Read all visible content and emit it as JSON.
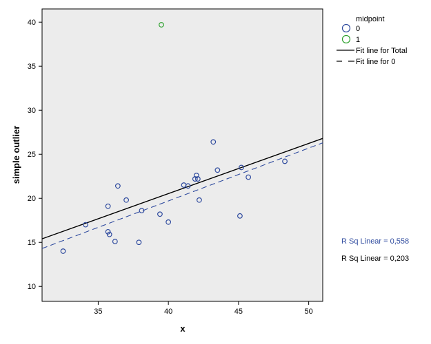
{
  "chart_data": {
    "type": "scatter",
    "xlabel": "x",
    "ylabel": "simple outlier",
    "xlim": [
      31,
      51
    ],
    "ylim": [
      8.3,
      41.5
    ],
    "xticks": [
      35,
      40,
      45,
      50
    ],
    "yticks": [
      10,
      15,
      20,
      25,
      30,
      35,
      40
    ],
    "grid": false,
    "legend_position": "top-right",
    "legend": {
      "title": "midpoint",
      "entries": [
        {
          "label": "0",
          "marker": "circle",
          "color": "#2e4a9e"
        },
        {
          "label": "1",
          "marker": "circle",
          "color": "#2ca02c"
        },
        {
          "label": "Fit line for Total",
          "line": "solid",
          "color": "#000000"
        },
        {
          "label": "Fit line for 0",
          "line": "dashed",
          "color": "#000000"
        }
      ]
    },
    "series": [
      {
        "name": "0",
        "color": "#2e4a9e",
        "x": [
          32.5,
          34.1,
          35.7,
          35.7,
          35.8,
          36.2,
          36.4,
          37.0,
          37.9,
          38.1,
          39.4,
          40.0,
          41.1,
          41.4,
          41.9,
          42.0,
          42.1,
          42.2,
          43.2,
          43.5,
          45.1,
          45.2,
          45.7,
          48.3
        ],
        "y": [
          14.0,
          17.0,
          19.1,
          16.2,
          15.9,
          15.1,
          21.4,
          19.8,
          15.0,
          18.6,
          18.2,
          17.3,
          21.5,
          21.4,
          22.2,
          22.6,
          22.2,
          19.8,
          26.4,
          23.2,
          18.0,
          23.5,
          22.4,
          24.2
        ]
      },
      {
        "name": "1",
        "color": "#2ca02c",
        "x": [
          39.5
        ],
        "y": [
          39.7
        ]
      }
    ],
    "fit_lines": [
      {
        "name": "Fit line for Total",
        "style": "solid",
        "color": "#000000",
        "x": [
          31,
          51
        ],
        "y": [
          15.4,
          26.8
        ]
      },
      {
        "name": "Fit line for 0",
        "style": "dashed",
        "color": "#2e4a9e",
        "x": [
          31,
          51
        ],
        "y": [
          14.3,
          26.3
        ]
      }
    ],
    "annotations": [
      {
        "text": "R Sq Linear = 0,558",
        "color": "#2e4a9e"
      },
      {
        "text": "R Sq Linear = 0,203",
        "color": "#000000"
      }
    ],
    "plot_background": "#ececec"
  }
}
